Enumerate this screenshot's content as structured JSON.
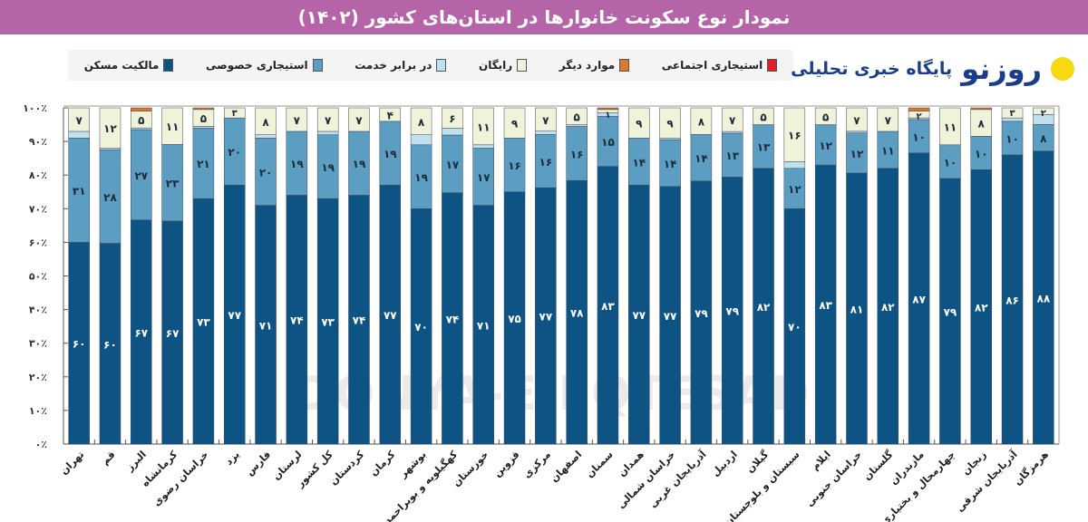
{
  "title": "نمودار نوع سکونت خانوارها در استان‌های کشور (۱۴۰۲)",
  "watermark": "DONYA-E-EQTESAD",
  "logo": {
    "brand": "روزنو",
    "tagline": "پایگاه خبری تحلیلی"
  },
  "legend": [
    {
      "label": "استیجاری اجتماعی",
      "color": "#e31e24"
    },
    {
      "label": "موارد دیگر",
      "color": "#d9782d"
    },
    {
      "label": "رایگان",
      "color": "#eef3d9"
    },
    {
      "label": "در برابر خدمت",
      "color": "#bfe0ef"
    },
    {
      "label": "استیجاری خصوصی",
      "color": "#5b9ec1"
    },
    {
      "label": "مالکیت مسکن",
      "color": "#0d5485"
    }
  ],
  "chart_data": {
    "type": "bar",
    "stacked": true,
    "title": "نمودار نوع سکونت خانوارها در استان‌های کشور (۱۴۰۲)",
    "ylim": [
      0,
      100
    ],
    "y_ticks": [
      "۰٪",
      "۱۰٪",
      "۲۰٪",
      "۳۰٪",
      "۴۰٪",
      "۵۰٪",
      "۶۰٪",
      "۷۰٪",
      "۸۰٪",
      "۹۰٪",
      "۱۰۰٪"
    ],
    "legend_position": "top",
    "categories": [
      "تهران",
      "قم",
      "البرز",
      "کرمانشاه",
      "خراسان رضوی",
      "یزد",
      "فارس",
      "لرستان",
      "کل کشور",
      "کردستان",
      "کرمان",
      "بوشهر",
      "کهگیلویه و بویراحمد",
      "خوزستان",
      "قزوین",
      "مرکزی",
      "اصفهان",
      "سمنان",
      "همدان",
      "خراسان شمالی",
      "آذربایجان غربی",
      "اردبیل",
      "گیلان",
      "سیستان و بلوچستان",
      "ایلام",
      "خراسان جنوبی",
      "گلستان",
      "مازندران",
      "چهارمحال و بختیاری",
      "زنجان",
      "آذربایجان شرقی",
      "هرمزگان"
    ],
    "series": [
      {
        "name": "مالکیت مسکن",
        "color": "#0d5485",
        "labeled": true,
        "values": [
          60,
          60,
          67,
          67,
          73,
          77,
          71,
          74,
          73,
          74,
          77,
          70,
          74,
          71,
          75,
          77,
          78,
          83,
          77,
          77,
          79,
          79,
          82,
          70,
          83,
          81,
          82,
          87,
          79,
          82,
          86,
          88
        ]
      },
      {
        "name": "استیجاری خصوصی",
        "color": "#5b9ec1",
        "labeled": true,
        "values": [
          31,
          28,
          27,
          23,
          21,
          20,
          20,
          19,
          19,
          19,
          19,
          19,
          17,
          17,
          16,
          16,
          16,
          15,
          14,
          14,
          14,
          13,
          13,
          12,
          12,
          12,
          11,
          10,
          10,
          10,
          10,
          8
        ]
      },
      {
        "name": "در برابر خدمت",
        "color": "#bfe0ef",
        "labeled": false,
        "values": [
          2,
          0.5,
          0.5,
          0,
          0.5,
          0,
          1,
          0,
          1,
          0,
          0,
          3,
          2,
          1,
          0,
          1,
          0.5,
          1,
          0,
          0.5,
          0,
          0.5,
          0,
          2,
          0,
          0.5,
          0,
          0.5,
          0,
          0,
          1,
          3
        ]
      },
      {
        "name": "رایگان",
        "color": "#eef3d9",
        "labeled": true,
        "values": [
          7,
          12,
          5,
          11,
          5,
          3,
          8,
          7,
          7,
          7,
          4,
          8,
          6,
          11,
          9,
          7,
          5,
          1,
          9,
          9,
          8,
          7,
          5,
          16,
          5,
          7,
          7,
          2,
          11,
          8,
          3,
          2
        ]
      },
      {
        "name": "موارد دیگر",
        "color": "#d9782d",
        "labeled": false,
        "values": [
          0,
          0,
          1,
          0,
          0.5,
          0,
          0,
          0,
          0,
          0,
          0,
          0,
          0,
          0,
          0,
          0,
          0,
          0.5,
          0,
          0,
          0,
          0,
          0,
          0,
          0,
          0,
          0,
          1,
          0,
          0.5,
          0,
          0
        ]
      },
      {
        "name": "استیجاری اجتماعی",
        "color": "#e31e24",
        "labeled": false,
        "values": [
          0,
          0,
          0,
          0,
          0,
          0,
          0,
          0,
          0,
          0,
          0,
          0,
          0,
          0,
          0,
          0,
          0,
          0,
          0,
          0,
          0,
          0,
          0,
          0,
          0,
          0,
          0,
          0,
          0,
          0,
          0,
          0
        ]
      }
    ]
  }
}
